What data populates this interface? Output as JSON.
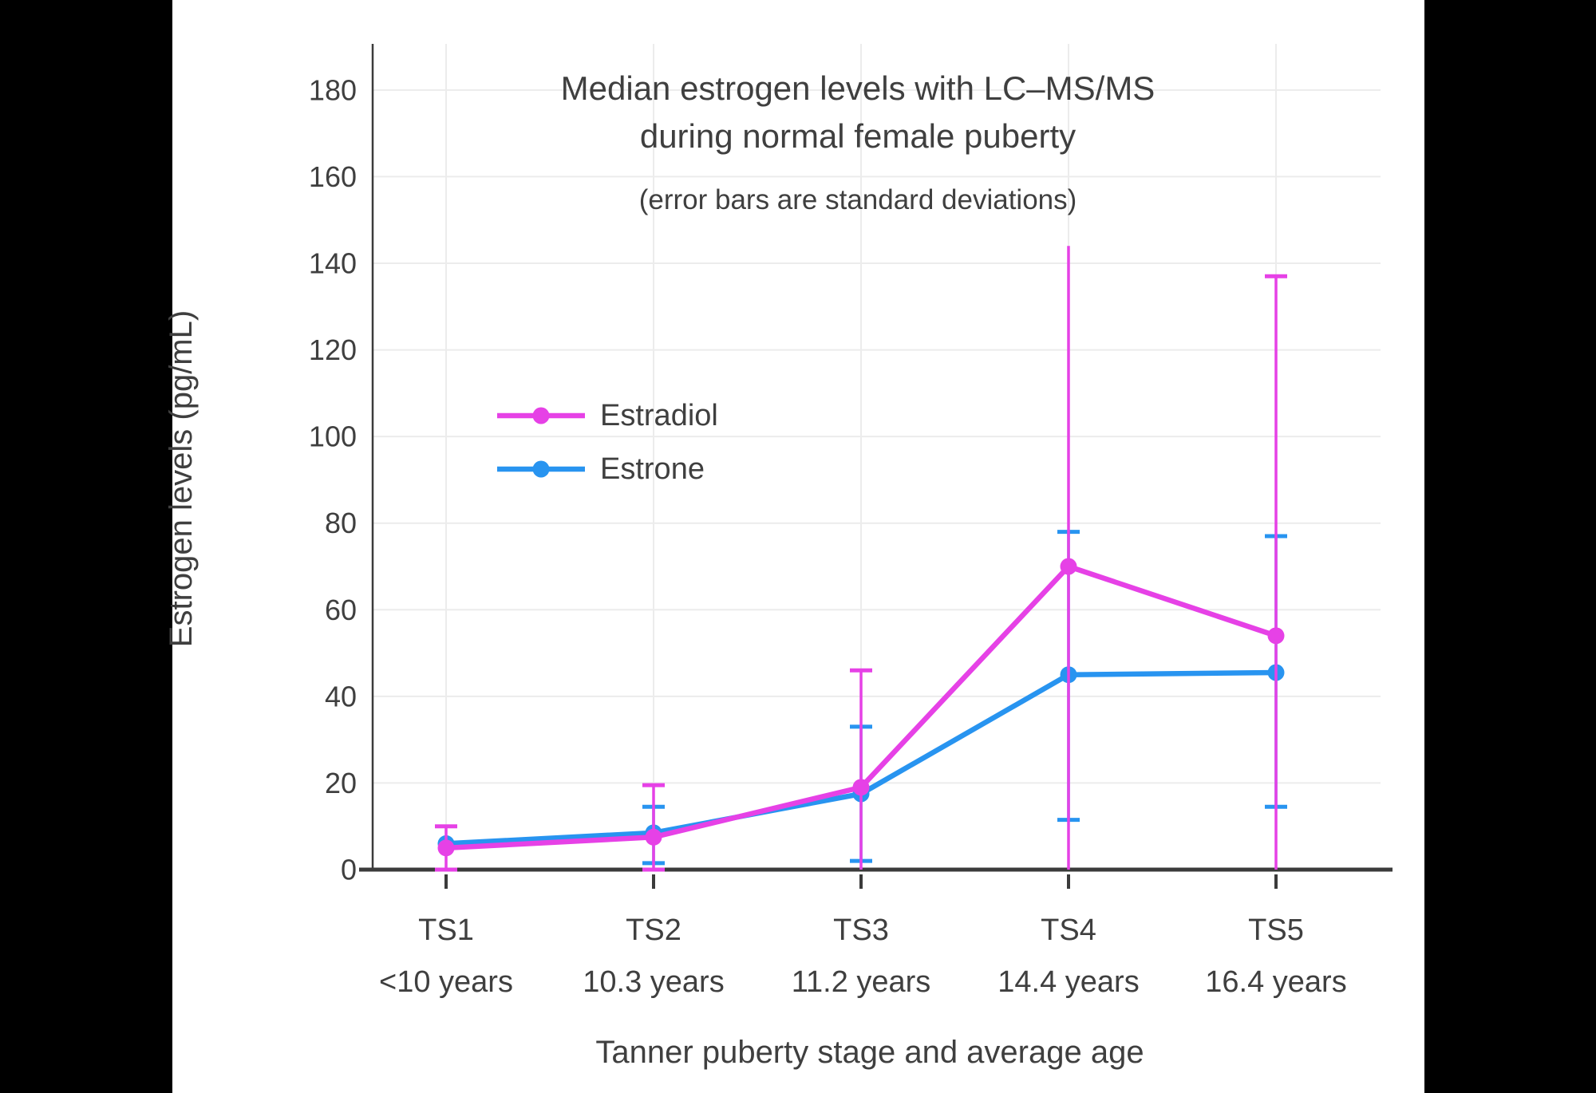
{
  "page": {
    "letterbox_color": "#000000",
    "canvas_color": "#ffffff"
  },
  "chart_data": {
    "type": "line",
    "title_lines": [
      "Median estrogen levels with LC–MS/MS",
      "during normal female puberty"
    ],
    "subtitle": "(error bars are standard deviations)",
    "xlabel": "Tanner puberty stage and average age",
    "ylabel": "Estrogen levels (pg/mL)",
    "ylim": [
      0,
      190
    ],
    "yticks": [
      0,
      20,
      40,
      60,
      80,
      100,
      120,
      140,
      160,
      180
    ],
    "grid": true,
    "legend_position": "inside-upper-left",
    "categories": [
      {
        "stage": "TS1",
        "age": "<10 years"
      },
      {
        "stage": "TS2",
        "age": "10.3 years"
      },
      {
        "stage": "TS3",
        "age": "11.2 years"
      },
      {
        "stage": "TS4",
        "age": "14.4 years"
      },
      {
        "stage": "TS5",
        "age": "16.4 years"
      }
    ],
    "series": [
      {
        "name": "Estradiol",
        "color": "#E641E6",
        "values": [
          5,
          7.5,
          19,
          70,
          54
        ],
        "error_high": [
          10,
          19.5,
          46,
          144,
          137
        ],
        "error_low": [
          0,
          0,
          0,
          0,
          0
        ],
        "cap_top": [
          true,
          true,
          true,
          false,
          true
        ],
        "cap_bottom": [
          true,
          true,
          false,
          false,
          false
        ]
      },
      {
        "name": "Estrone",
        "color": "#2894F0",
        "values": [
          6,
          8.5,
          17.5,
          45,
          45.5
        ],
        "error_high": [
          null,
          14.5,
          33,
          78,
          77
        ],
        "error_low": [
          null,
          1.5,
          2,
          11.5,
          14.5
        ],
        "cap_top": [
          false,
          true,
          true,
          true,
          true
        ],
        "cap_bottom": [
          false,
          true,
          true,
          true,
          true
        ]
      }
    ],
    "style": {
      "text_color": "#3F3F3F",
      "grid_color": "#ECECEC",
      "axis_color": "#3B3B3B"
    }
  }
}
